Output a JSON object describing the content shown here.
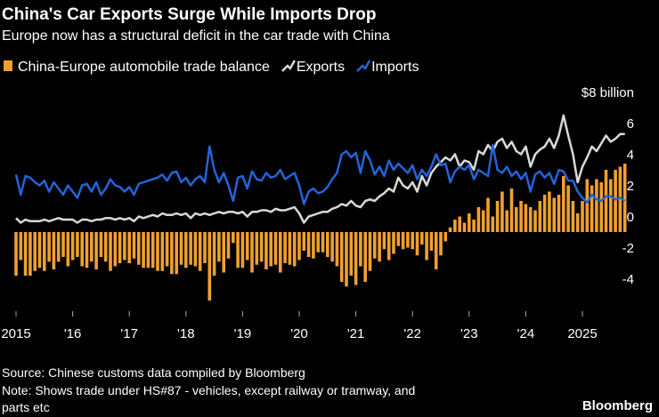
{
  "chart_data": {
    "type": "bar_line",
    "title": "China's Car Exports Surge While Imports Drop",
    "subtitle": "Europe now has a structural deficit in the car trade with China",
    "source": "Source: Chinese customs data compiled by Bloomberg",
    "note": [
      "Note: Shows trade under HS#87 - vehicles, except railway or tramway, and",
      "parts etc"
    ],
    "brand": "Bloomberg",
    "categories": [
      "2015",
      null,
      null,
      null,
      null,
      null,
      null,
      null,
      null,
      null,
      null,
      null,
      "'16",
      null,
      null,
      null,
      null,
      null,
      null,
      null,
      null,
      null,
      null,
      null,
      "'17",
      null,
      null,
      null,
      null,
      null,
      null,
      null,
      null,
      null,
      null,
      null,
      "'18",
      null,
      null,
      null,
      null,
      null,
      null,
      null,
      null,
      null,
      null,
      null,
      "'19",
      null,
      null,
      null,
      null,
      null,
      null,
      null,
      null,
      null,
      null,
      null,
      "'20",
      null,
      null,
      null,
      null,
      null,
      null,
      null,
      null,
      null,
      null,
      null,
      "'21",
      null,
      null,
      null,
      null,
      null,
      null,
      null,
      null,
      null,
      null,
      null,
      "'22",
      null,
      null,
      null,
      null,
      null,
      null,
      null,
      null,
      null,
      null,
      null,
      "'23",
      null,
      null,
      null,
      null,
      null,
      null,
      null,
      null,
      null,
      null,
      null,
      "'24",
      null,
      null,
      null,
      null,
      null,
      null,
      null,
      null,
      null,
      null,
      null,
      "2025",
      null,
      null,
      null,
      null,
      null,
      null,
      null,
      null,
      null
    ],
    "series": [
      {
        "name": "China-Europe automobile trade balance",
        "kind": "bar",
        "color": "#f0a030",
        "values": [
          -2.8,
          -1.8,
          -2.8,
          -2.8,
          -2.5,
          -2.3,
          -2.5,
          -1.9,
          -2.4,
          -1.9,
          -1.6,
          -2.2,
          -1.8,
          -1.6,
          -2.2,
          -2.3,
          -1.9,
          -2.4,
          -1.6,
          -1.9,
          -2.5,
          -2.2,
          -2.0,
          -1.8,
          -2.0,
          -1.7,
          -2.1,
          -2.3,
          -2.3,
          -2.3,
          -2.5,
          -2.5,
          -2.2,
          -2.7,
          -2.7,
          -2.1,
          -2.3,
          -2.1,
          -2.2,
          -2.5,
          -2.0,
          -4.4,
          -2.8,
          -1.9,
          -2.6,
          -1.7,
          -0.7,
          -2.3,
          -2.3,
          -1.8,
          -2.6,
          -2.1,
          -1.9,
          -2.4,
          -2.2,
          -2.1,
          -2.6,
          -2.0,
          -2.1,
          -2.2,
          -1.8,
          -1.2,
          -1.6,
          -1.7,
          -1.3,
          -1.3,
          -1.6,
          -1.9,
          -2.2,
          -3.2,
          -3.5,
          -2.8,
          -3.4,
          -2.2,
          -3.2,
          -2.5,
          -1.7,
          -1.9,
          -1.1,
          -1.8,
          -1.4,
          -0.9,
          -1.1,
          -1.0,
          -1.1,
          -1.5,
          -0.8,
          -1.8,
          -1.2,
          -2.4,
          -1.5,
          -0.6,
          0.3,
          0.8,
          1.0,
          0.6,
          1.2,
          0.8,
          1.6,
          1.4,
          2.2,
          1.0,
          2.0,
          2.6,
          1.4,
          2.8,
          1.6,
          2.0,
          1.8,
          1.6,
          1.4,
          2.0,
          2.4,
          2.6,
          2.2,
          2.4,
          3.6,
          3.0,
          2.0,
          1.2,
          2.0,
          3.4,
          3.0,
          3.4,
          3.2,
          4.0,
          3.4,
          4.0,
          4.2,
          4.4
        ]
      },
      {
        "name": "Exports",
        "kind": "line",
        "color": "#d9d9d9",
        "values": [
          0.9,
          0.6,
          0.8,
          0.7,
          0.7,
          0.7,
          0.8,
          0.7,
          0.8,
          0.9,
          0.8,
          0.8,
          0.8,
          0.6,
          0.8,
          0.8,
          0.7,
          0.8,
          0.8,
          0.9,
          0.9,
          0.8,
          0.9,
          0.8,
          0.9,
          0.7,
          1.0,
          0.9,
          1.0,
          1.1,
          1.0,
          1.2,
          1.1,
          1.1,
          1.2,
          1.1,
          1.2,
          0.9,
          1.2,
          1.1,
          1.2,
          1.1,
          1.2,
          1.3,
          1.2,
          1.3,
          1.3,
          1.2,
          1.3,
          1.0,
          1.3,
          1.3,
          1.4,
          1.4,
          1.3,
          1.5,
          1.4,
          1.4,
          1.5,
          1.6,
          1.2,
          0.6,
          1.0,
          1.1,
          1.2,
          1.3,
          1.3,
          1.5,
          1.6,
          1.8,
          1.7,
          2.0,
          1.7,
          1.6,
          2.0,
          2.1,
          2.0,
          2.3,
          2.5,
          2.8,
          2.6,
          3.5,
          3.0,
          2.8,
          3.2,
          2.6,
          3.6,
          3.0,
          3.8,
          4.2,
          4.5,
          4.8,
          4.6,
          5.0,
          4.2,
          4.6,
          4.5,
          4.0,
          5.2,
          5.0,
          5.6,
          5.2,
          5.8,
          6.0,
          5.4,
          5.8,
          5.2,
          5.0,
          5.5,
          4.2,
          5.0,
          5.3,
          5.5,
          6.0,
          5.4,
          6.2,
          7.5,
          6.2,
          5.0,
          3.2,
          4.2,
          4.8,
          5.5,
          5.2,
          5.7,
          6.2,
          5.8,
          6.0,
          6.3,
          6.3
        ]
      },
      {
        "name": "Imports",
        "kind": "line",
        "color": "#2563d9",
        "values": [
          3.7,
          2.4,
          3.6,
          3.5,
          3.2,
          3.0,
          3.3,
          2.6,
          3.2,
          2.8,
          2.4,
          3.0,
          2.6,
          2.2,
          3.0,
          3.1,
          2.6,
          3.2,
          2.4,
          2.8,
          3.4,
          3.0,
          2.9,
          2.6,
          2.9,
          2.4,
          3.1,
          3.2,
          3.3,
          3.4,
          3.5,
          3.7,
          3.3,
          3.8,
          3.9,
          3.2,
          3.5,
          3.0,
          3.4,
          3.6,
          3.2,
          5.5,
          4.0,
          3.2,
          3.8,
          3.0,
          2.0,
          3.5,
          3.6,
          2.8,
          3.9,
          3.4,
          3.3,
          3.8,
          3.5,
          3.6,
          4.0,
          3.4,
          3.6,
          3.8,
          3.0,
          1.8,
          2.6,
          2.8,
          2.5,
          2.6,
          2.9,
          3.4,
          3.8,
          5.0,
          5.2,
          4.8,
          5.1,
          3.8,
          5.2,
          4.6,
          3.7,
          4.2,
          3.6,
          4.6,
          4.0,
          4.4,
          4.1,
          3.8,
          4.3,
          3.4,
          4.0,
          3.6,
          4.2,
          5.0,
          4.3,
          4.4,
          3.2,
          3.9,
          4.2,
          4.0,
          4.3,
          3.4,
          4.0,
          3.8,
          3.6,
          5.6,
          4.0,
          3.8,
          4.2,
          3.6,
          3.9,
          3.4,
          3.8,
          2.6,
          3.7,
          3.9,
          3.5,
          3.8,
          3.1,
          4.0,
          3.9,
          3.3,
          3.3,
          2.6,
          2.2,
          1.9,
          2.4,
          2.1,
          2.0,
          2.3,
          2.3,
          2.1,
          2.2,
          2.0
        ]
      }
    ],
    "ylim": [
      -5,
      8
    ],
    "yticks": [
      -4,
      -2,
      0,
      2,
      4,
      6,
      {
        "value": 8,
        "label": "$8 billion"
      }
    ],
    "grid": false,
    "legend": "top-left"
  }
}
